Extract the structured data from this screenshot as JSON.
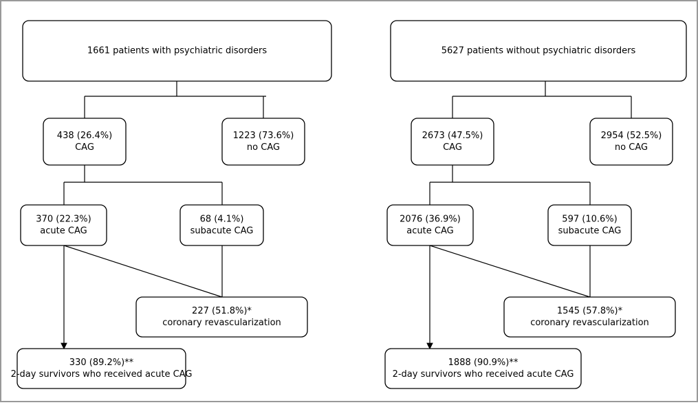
{
  "panels": [
    {
      "nodes": [
        {
          "lines": [
            "1661 patients with psychiatric disorders"
          ]
        },
        {
          "lines": [
            "438 (26.4%)",
            "CAG"
          ]
        },
        {
          "lines": [
            "1223 (73.6%)",
            "no CAG"
          ]
        },
        {
          "lines": [
            "370 (22.3%)",
            "acute CAG"
          ]
        },
        {
          "lines": [
            "68 (4.1%)",
            "subacute CAG"
          ]
        },
        {
          "lines": [
            "227 (51.8%)*",
            "coronary revascularization"
          ]
        },
        {
          "lines": [
            "330 (89.2%)**",
            "2-day survivors who received acute CAG"
          ]
        }
      ]
    },
    {
      "nodes": [
        {
          "lines": [
            "5627 patients without psychiatric disorders"
          ]
        },
        {
          "lines": [
            "2673 (47.5%)",
            "CAG"
          ]
        },
        {
          "lines": [
            "2954 (52.5%)",
            "no CAG"
          ]
        },
        {
          "lines": [
            "2076 (36.9%)",
            "acute CAG"
          ]
        },
        {
          "lines": [
            "597 (10.6%)",
            "subacute CAG"
          ]
        },
        {
          "lines": [
            "1545 (57.8%)*",
            "coronary revascularization"
          ]
        },
        {
          "lines": [
            "1888 (90.9%)**",
            "2-day survivors who received acute CAG"
          ]
        }
      ]
    }
  ]
}
